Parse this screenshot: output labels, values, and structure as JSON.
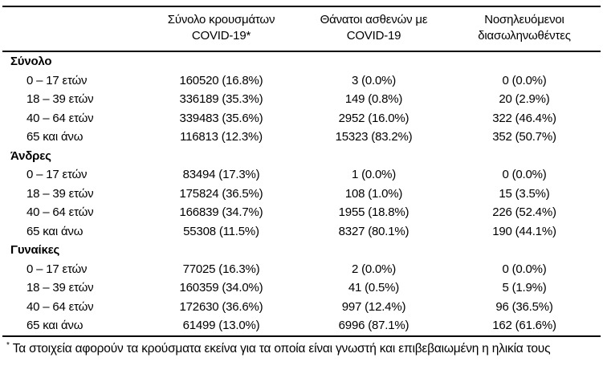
{
  "table": {
    "col_headers": [
      {
        "line1": "Σύνολο κρουσμάτων",
        "line2": "COVID-19*"
      },
      {
        "line1": "Θάνατοι ασθενών με",
        "line2": "COVID-19"
      },
      {
        "line1": "Νοσηλευόμενοι",
        "line2": "διασωληνωθέντες"
      }
    ],
    "sections": [
      {
        "label": "Σύνολο",
        "rows": [
          {
            "label": "0 – 17 ετών",
            "cases": "160520 (16.8%)",
            "deaths": "3 (0.0%)",
            "intubated": "0 (0.0%)"
          },
          {
            "label": "18 – 39 ετών",
            "cases": "336189 (35.3%)",
            "deaths": "149 (0.8%)",
            "intubated": "20 (2.9%)"
          },
          {
            "label": "40 – 64 ετών",
            "cases": "339483 (35.6%)",
            "deaths": "2952 (16.0%)",
            "intubated": "322 (46.4%)"
          },
          {
            "label": "65 και άνω",
            "cases": "116813 (12.3%)",
            "deaths": "15323 (83.2%)",
            "intubated": "352 (50.7%)"
          }
        ]
      },
      {
        "label": "Άνδρες",
        "rows": [
          {
            "label": "0 – 17 ετών",
            "cases": "83494 (17.3%)",
            "deaths": "1 (0.0%)",
            "intubated": "0 (0.0%)"
          },
          {
            "label": "18 – 39 ετών",
            "cases": "175824 (36.5%)",
            "deaths": "108 (1.0%)",
            "intubated": "15 (3.5%)"
          },
          {
            "label": "40 – 64 ετών",
            "cases": "166839 (34.7%)",
            "deaths": "1955 (18.8%)",
            "intubated": "226 (52.4%)"
          },
          {
            "label": "65 και άνω",
            "cases": "55308 (11.5%)",
            "deaths": "8327 (80.1%)",
            "intubated": "190 (44.1%)"
          }
        ]
      },
      {
        "label": "Γυναίκες",
        "rows": [
          {
            "label": "0 – 17 ετών",
            "cases": "77025 (16.3%)",
            "deaths": "2 (0.0%)",
            "intubated": "0 (0.0%)"
          },
          {
            "label": "18 – 39 ετών",
            "cases": "160359 (34.0%)",
            "deaths": "41 (0.5%)",
            "intubated": "5 (1.9%)"
          },
          {
            "label": "40 – 64 ετών",
            "cases": "172630 (36.6%)",
            "deaths": "997 (12.4%)",
            "intubated": "96 (36.5%)"
          },
          {
            "label": "65 και άνω",
            "cases": "61499 (13.0%)",
            "deaths": "6996 (87.1%)",
            "intubated": "162 (61.6%)"
          }
        ]
      }
    ],
    "footnote_marker": "*",
    "footnote": "Τα στοιχεία αφορούν τα κρούσματα εκείνα για τα οποία είναι γνωστή και επιβεβαιωμένη η ηλικία τους",
    "colors": {
      "text": "#000000",
      "rule": "#000000",
      "background": "#ffffff"
    }
  }
}
